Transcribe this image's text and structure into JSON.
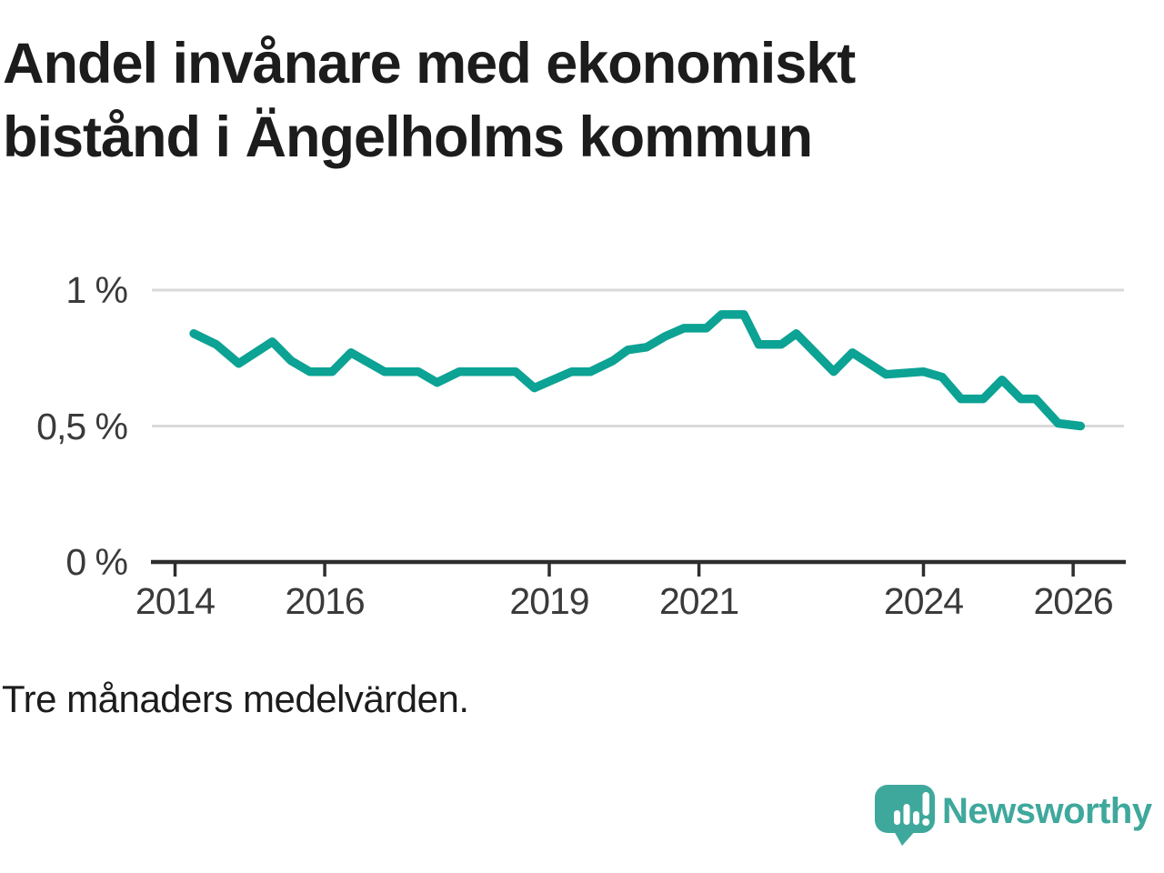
{
  "title": {
    "text": "Andel invånare med ekonomiskt\nbistånd i Ängelholms kommun"
  },
  "note": {
    "text": "Tre månaders medelvärden."
  },
  "branding": {
    "name": "Newsworthy",
    "color": "#3fa89c"
  },
  "chart_data": {
    "type": "line",
    "title": "Andel invånare med ekonomiskt bistånd i Ängelholms kommun",
    "note": "Tre månaders medelvärden.",
    "unit": "%",
    "line_color": "#0ca294",
    "grid_color": "#d9d9d9",
    "axis_color": "#2e2e2e",
    "label_color": "#3a3a3a",
    "legend": "none",
    "grid": "horizontal",
    "x_range": [
      2013.7,
      2026.7
    ],
    "y_range": [
      0,
      1.15
    ],
    "y_ticks": [
      {
        "label": "1 %",
        "value": 1,
        "gridline": true
      },
      {
        "label": "0,5 %",
        "value": 0.5,
        "gridline": true
      },
      {
        "label": "0 %",
        "value": 0,
        "gridline": false
      }
    ],
    "x_ticks": [
      {
        "label": "2014",
        "year": 2014
      },
      {
        "label": "2016",
        "year": 2016
      },
      {
        "label": "2019",
        "year": 2019
      },
      {
        "label": "2021",
        "year": 2021
      },
      {
        "label": "2024",
        "year": 2024
      },
      {
        "label": "2026",
        "year": 2026
      }
    ],
    "points": [
      [
        2014.25,
        0.84
      ],
      [
        2014.55,
        0.8
      ],
      [
        2014.85,
        0.73
      ],
      [
        2015.3,
        0.81
      ],
      [
        2015.55,
        0.74
      ],
      [
        2015.8,
        0.7
      ],
      [
        2016.1,
        0.7
      ],
      [
        2016.35,
        0.77
      ],
      [
        2016.8,
        0.7
      ],
      [
        2017.25,
        0.7
      ],
      [
        2017.5,
        0.66
      ],
      [
        2017.8,
        0.7
      ],
      [
        2018.55,
        0.7
      ],
      [
        2018.8,
        0.64
      ],
      [
        2019.3,
        0.7
      ],
      [
        2019.55,
        0.7
      ],
      [
        2019.85,
        0.74
      ],
      [
        2020.05,
        0.78
      ],
      [
        2020.3,
        0.79
      ],
      [
        2020.55,
        0.83
      ],
      [
        2020.8,
        0.86
      ],
      [
        2021.1,
        0.86
      ],
      [
        2021.3,
        0.91
      ],
      [
        2021.6,
        0.91
      ],
      [
        2021.8,
        0.8
      ],
      [
        2022.1,
        0.8
      ],
      [
        2022.3,
        0.84
      ],
      [
        2022.8,
        0.7
      ],
      [
        2023.05,
        0.77
      ],
      [
        2023.5,
        0.69
      ],
      [
        2024.0,
        0.7
      ],
      [
        2024.25,
        0.68
      ],
      [
        2024.5,
        0.6
      ],
      [
        2024.8,
        0.6
      ],
      [
        2025.05,
        0.67
      ],
      [
        2025.3,
        0.6
      ],
      [
        2025.5,
        0.6
      ],
      [
        2025.8,
        0.51
      ],
      [
        2026.1,
        0.5
      ]
    ]
  }
}
